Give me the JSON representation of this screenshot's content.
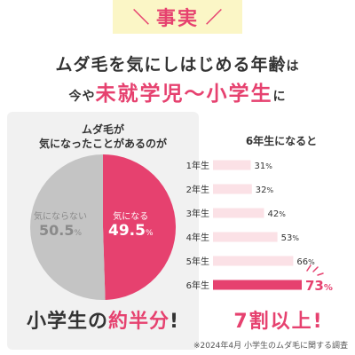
{
  "header": {
    "tag": "事実",
    "headline_line1": "ムダ毛を気にしはじめる年齢",
    "headline_line1_suffix": "は",
    "headline_line2_prefix": "今や",
    "headline_line2_highlight": "未就学児〜小学生",
    "headline_line2_suffix": "に"
  },
  "left": {
    "title_line1": "ムダ毛が",
    "title_line2": "気になったことがあるのが",
    "slice_not_label": "気にならない",
    "slice_not_value": "50.5",
    "slice_yes_label": "気になる",
    "slice_yes_value": "49.5",
    "percent_sign": "%",
    "bottom_prefix": "小学生の",
    "bottom_highlight": "約半分",
    "bottom_suffix": "!"
  },
  "right": {
    "bottom_text": "7割以上!"
  },
  "footnote": "※2024年4月 小学生のムダ毛に関する調査",
  "colors": {
    "accent": "#e6416f",
    "bar_light": "#fbe1e6",
    "pie_grey": "#c4c4c4",
    "tag_bg": "#fbf6c6",
    "panel_bg": "#f1f1f1"
  },
  "chart_data": [
    {
      "type": "pie",
      "title": "ムダ毛が気になったことがあるのが",
      "slices": [
        {
          "label": "気になる",
          "value": 49.5
        },
        {
          "label": "気にならない",
          "value": 50.5
        }
      ]
    },
    {
      "type": "bar",
      "title": "6年生になると",
      "categories": [
        "1年生",
        "2年生",
        "3年生",
        "4年生",
        "5年生",
        "6年生"
      ],
      "values": [
        31,
        32,
        42,
        53,
        66,
        73
      ],
      "unit": "%",
      "highlight_category": "6年生"
    }
  ]
}
